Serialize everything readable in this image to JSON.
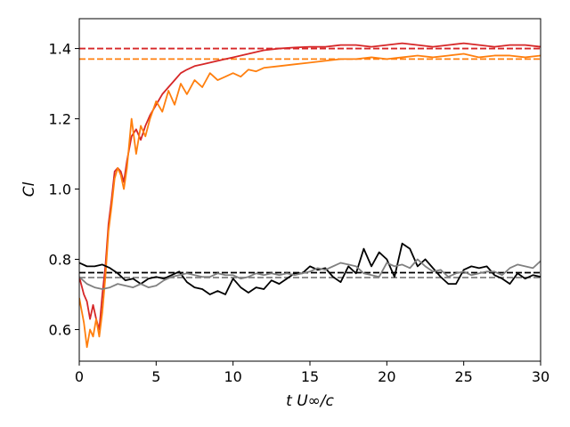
{
  "chart_data": {
    "type": "line",
    "title": "",
    "xlabel": "t U∞/c",
    "ylabel": "Cl",
    "xlim": [
      0,
      30
    ],
    "ylim": [
      0.51,
      1.485
    ],
    "xticks": [
      0,
      5,
      10,
      15,
      20,
      25,
      30
    ],
    "yticks": [
      0.6,
      0.8,
      1.0,
      1.2,
      1.4
    ],
    "xtick_labels": [
      "0",
      "5",
      "10",
      "15",
      "20",
      "25",
      "30"
    ],
    "ytick_labels": [
      "0.6",
      "0.8",
      "1.0",
      "1.2",
      "1.4"
    ],
    "grid": false,
    "legend": "none",
    "series": [
      {
        "color": "#d62728",
        "style": "solid",
        "points": [
          [
            0,
            0.75
          ],
          [
            0.3,
            0.7
          ],
          [
            0.5,
            0.68
          ],
          [
            0.7,
            0.63
          ],
          [
            0.9,
            0.67
          ],
          [
            1.1,
            0.63
          ],
          [
            1.3,
            0.6
          ],
          [
            1.5,
            0.7
          ],
          [
            1.7,
            0.78
          ],
          [
            1.9,
            0.9
          ],
          [
            2.1,
            0.97
          ],
          [
            2.3,
            1.05
          ],
          [
            2.5,
            1.06
          ],
          [
            2.7,
            1.05
          ],
          [
            2.9,
            1.02
          ],
          [
            3.1,
            1.08
          ],
          [
            3.4,
            1.15
          ],
          [
            3.7,
            1.17
          ],
          [
            4.0,
            1.14
          ],
          [
            4.3,
            1.18
          ],
          [
            4.6,
            1.21
          ],
          [
            5.0,
            1.24
          ],
          [
            5.4,
            1.27
          ],
          [
            5.8,
            1.29
          ],
          [
            6.2,
            1.31
          ],
          [
            6.6,
            1.33
          ],
          [
            7.0,
            1.34
          ],
          [
            7.5,
            1.35
          ],
          [
            8.0,
            1.355
          ],
          [
            8.5,
            1.36
          ],
          [
            9.0,
            1.365
          ],
          [
            9.5,
            1.37
          ],
          [
            10.0,
            1.375
          ],
          [
            10.5,
            1.38
          ],
          [
            11.0,
            1.385
          ],
          [
            11.5,
            1.39
          ],
          [
            12.0,
            1.395
          ],
          [
            13.0,
            1.4
          ],
          [
            14.0,
            1.403
          ],
          [
            15.0,
            1.405
          ],
          [
            16.0,
            1.405
          ],
          [
            17.0,
            1.41
          ],
          [
            18.0,
            1.41
          ],
          [
            19.0,
            1.405
          ],
          [
            20.0,
            1.41
          ],
          [
            21.0,
            1.415
          ],
          [
            22.0,
            1.41
          ],
          [
            23.0,
            1.405
          ],
          [
            24.0,
            1.41
          ],
          [
            25.0,
            1.415
          ],
          [
            26.0,
            1.41
          ],
          [
            27.0,
            1.405
          ],
          [
            28.0,
            1.41
          ],
          [
            29.0,
            1.41
          ],
          [
            30.0,
            1.405
          ]
        ]
      },
      {
        "color": "#ff7f0e",
        "style": "solid",
        "points": [
          [
            0,
            0.69
          ],
          [
            0.3,
            0.62
          ],
          [
            0.5,
            0.55
          ],
          [
            0.7,
            0.6
          ],
          [
            0.9,
            0.58
          ],
          [
            1.1,
            0.63
          ],
          [
            1.3,
            0.58
          ],
          [
            1.5,
            0.65
          ],
          [
            1.7,
            0.75
          ],
          [
            1.9,
            0.88
          ],
          [
            2.1,
            0.95
          ],
          [
            2.3,
            1.03
          ],
          [
            2.5,
            1.06
          ],
          [
            2.7,
            1.04
          ],
          [
            2.9,
            1.0
          ],
          [
            3.1,
            1.06
          ],
          [
            3.4,
            1.2
          ],
          [
            3.7,
            1.1
          ],
          [
            4.0,
            1.18
          ],
          [
            4.3,
            1.15
          ],
          [
            4.6,
            1.2
          ],
          [
            5.0,
            1.25
          ],
          [
            5.4,
            1.22
          ],
          [
            5.8,
            1.28
          ],
          [
            6.2,
            1.24
          ],
          [
            6.6,
            1.3
          ],
          [
            7.0,
            1.27
          ],
          [
            7.5,
            1.31
          ],
          [
            8.0,
            1.29
          ],
          [
            8.5,
            1.33
          ],
          [
            9.0,
            1.31
          ],
          [
            9.5,
            1.32
          ],
          [
            10.0,
            1.33
          ],
          [
            10.5,
            1.32
          ],
          [
            11.0,
            1.34
          ],
          [
            11.5,
            1.335
          ],
          [
            12.0,
            1.345
          ],
          [
            13.0,
            1.35
          ],
          [
            14.0,
            1.355
          ],
          [
            15.0,
            1.36
          ],
          [
            16.0,
            1.365
          ],
          [
            17.0,
            1.37
          ],
          [
            18.0,
            1.37
          ],
          [
            19.0,
            1.375
          ],
          [
            20.0,
            1.37
          ],
          [
            21.0,
            1.375
          ],
          [
            22.0,
            1.38
          ],
          [
            23.0,
            1.375
          ],
          [
            24.0,
            1.38
          ],
          [
            25.0,
            1.385
          ],
          [
            26.0,
            1.375
          ],
          [
            27.0,
            1.38
          ],
          [
            28.0,
            1.38
          ],
          [
            29.0,
            1.375
          ],
          [
            30.0,
            1.38
          ]
        ]
      },
      {
        "color": "#000000",
        "style": "solid",
        "points": [
          [
            0,
            0.79
          ],
          [
            0.5,
            0.78
          ],
          [
            1.0,
            0.78
          ],
          [
            1.5,
            0.785
          ],
          [
            2.0,
            0.775
          ],
          [
            2.5,
            0.76
          ],
          [
            3.0,
            0.74
          ],
          [
            3.5,
            0.745
          ],
          [
            4.0,
            0.73
          ],
          [
            4.5,
            0.745
          ],
          [
            5.0,
            0.75
          ],
          [
            5.5,
            0.745
          ],
          [
            6.0,
            0.755
          ],
          [
            6.5,
            0.765
          ],
          [
            7.0,
            0.735
          ],
          [
            7.5,
            0.72
          ],
          [
            8.0,
            0.715
          ],
          [
            8.5,
            0.7
          ],
          [
            9.0,
            0.71
          ],
          [
            9.5,
            0.7
          ],
          [
            10.0,
            0.745
          ],
          [
            10.5,
            0.72
          ],
          [
            11.0,
            0.705
          ],
          [
            11.5,
            0.72
          ],
          [
            12.0,
            0.715
          ],
          [
            12.5,
            0.74
          ],
          [
            13.0,
            0.73
          ],
          [
            13.5,
            0.745
          ],
          [
            14.0,
            0.76
          ],
          [
            14.5,
            0.76
          ],
          [
            15.0,
            0.78
          ],
          [
            15.5,
            0.77
          ],
          [
            16.0,
            0.775
          ],
          [
            16.5,
            0.75
          ],
          [
            17.0,
            0.735
          ],
          [
            17.5,
            0.78
          ],
          [
            18.0,
            0.76
          ],
          [
            18.5,
            0.83
          ],
          [
            19.0,
            0.78
          ],
          [
            19.5,
            0.82
          ],
          [
            20.0,
            0.8
          ],
          [
            20.5,
            0.75
          ],
          [
            21.0,
            0.845
          ],
          [
            21.5,
            0.83
          ],
          [
            22.0,
            0.78
          ],
          [
            22.5,
            0.8
          ],
          [
            23.0,
            0.775
          ],
          [
            23.5,
            0.75
          ],
          [
            24.0,
            0.73
          ],
          [
            24.5,
            0.73
          ],
          [
            25.0,
            0.77
          ],
          [
            25.5,
            0.78
          ],
          [
            26.0,
            0.775
          ],
          [
            26.5,
            0.78
          ],
          [
            27.0,
            0.755
          ],
          [
            27.5,
            0.745
          ],
          [
            28.0,
            0.73
          ],
          [
            28.5,
            0.76
          ],
          [
            29.0,
            0.745
          ],
          [
            29.5,
            0.755
          ],
          [
            30.0,
            0.75
          ]
        ]
      },
      {
        "color": "#808080",
        "style": "solid",
        "points": [
          [
            0,
            0.75
          ],
          [
            0.5,
            0.73
          ],
          [
            1.0,
            0.72
          ],
          [
            1.5,
            0.715
          ],
          [
            2.0,
            0.72
          ],
          [
            2.5,
            0.73
          ],
          [
            3.0,
            0.725
          ],
          [
            3.5,
            0.72
          ],
          [
            4.0,
            0.73
          ],
          [
            4.5,
            0.72
          ],
          [
            5.0,
            0.725
          ],
          [
            5.5,
            0.74
          ],
          [
            6.0,
            0.75
          ],
          [
            6.5,
            0.755
          ],
          [
            7.0,
            0.76
          ],
          [
            7.5,
            0.755
          ],
          [
            8.0,
            0.75
          ],
          [
            8.5,
            0.75
          ],
          [
            9.0,
            0.76
          ],
          [
            9.5,
            0.755
          ],
          [
            10.0,
            0.755
          ],
          [
            10.5,
            0.745
          ],
          [
            11.0,
            0.75
          ],
          [
            11.5,
            0.76
          ],
          [
            12.0,
            0.755
          ],
          [
            12.5,
            0.76
          ],
          [
            13.0,
            0.755
          ],
          [
            13.5,
            0.76
          ],
          [
            14.0,
            0.755
          ],
          [
            14.5,
            0.76
          ],
          [
            15.0,
            0.765
          ],
          [
            15.5,
            0.775
          ],
          [
            16.0,
            0.77
          ],
          [
            16.5,
            0.78
          ],
          [
            17.0,
            0.79
          ],
          [
            17.5,
            0.785
          ],
          [
            18.0,
            0.78
          ],
          [
            18.5,
            0.76
          ],
          [
            19.0,
            0.755
          ],
          [
            19.5,
            0.75
          ],
          [
            20.0,
            0.79
          ],
          [
            20.5,
            0.78
          ],
          [
            21.0,
            0.785
          ],
          [
            21.5,
            0.775
          ],
          [
            22.0,
            0.8
          ],
          [
            22.5,
            0.78
          ],
          [
            23.0,
            0.765
          ],
          [
            23.5,
            0.77
          ],
          [
            24.0,
            0.75
          ],
          [
            24.5,
            0.76
          ],
          [
            25.0,
            0.765
          ],
          [
            25.5,
            0.755
          ],
          [
            26.0,
            0.76
          ],
          [
            26.5,
            0.765
          ],
          [
            27.0,
            0.765
          ],
          [
            27.5,
            0.755
          ],
          [
            28.0,
            0.775
          ],
          [
            28.5,
            0.785
          ],
          [
            29.0,
            0.78
          ],
          [
            29.5,
            0.775
          ],
          [
            30.0,
            0.795
          ]
        ]
      }
    ],
    "reference_lines": [
      {
        "y": 1.4,
        "x_end": 30,
        "color": "#d62728",
        "style": "dashed"
      },
      {
        "y": 1.37,
        "x_end": 30,
        "color": "#ff7f0e",
        "style": "dashed"
      },
      {
        "y": 0.762,
        "x_end": 30,
        "color": "#000000",
        "style": "dashed"
      },
      {
        "y": 0.748,
        "x_end": 30,
        "color": "#808080",
        "style": "dashed"
      }
    ]
  }
}
